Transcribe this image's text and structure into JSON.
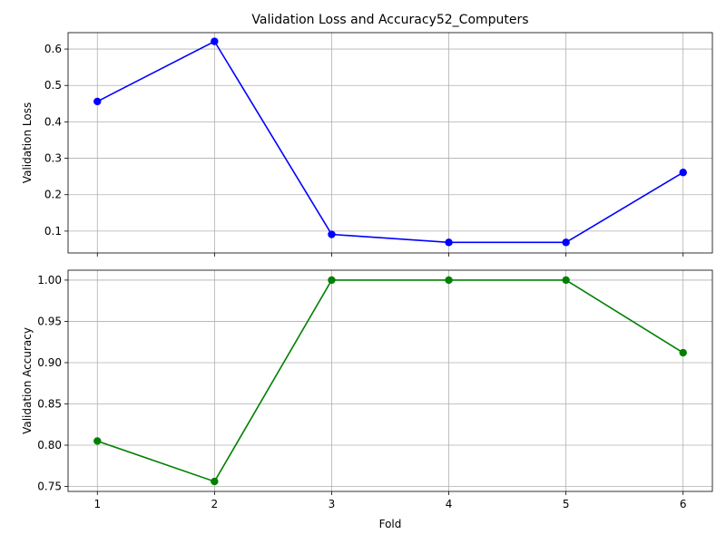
{
  "chart_data": {
    "title": "Validation Loss and Accuracy52_Computers",
    "type": "line",
    "x": [
      1,
      2,
      3,
      4,
      5,
      6
    ],
    "xlabel": "Fold",
    "xticks": [
      "1",
      "2",
      "3",
      "4",
      "5",
      "6"
    ],
    "grid": true,
    "subplots": [
      {
        "ylabel": "Validation Loss",
        "ylim": [
          0.04,
          0.645
        ],
        "yticks": [
          0.1,
          0.2,
          0.3,
          0.4,
          0.5,
          0.6
        ],
        "ytick_labels": [
          "0.1",
          "0.2",
          "0.3",
          "0.4",
          "0.5",
          "0.6"
        ],
        "color": "#0000ff",
        "values": [
          0.456,
          0.621,
          0.091,
          0.069,
          0.069,
          0.261
        ]
      },
      {
        "ylabel": "Validation Accuracy",
        "ylim": [
          0.744,
          1.012
        ],
        "yticks": [
          0.75,
          0.8,
          0.85,
          0.9,
          0.95,
          1.0
        ],
        "ytick_labels": [
          "0.75",
          "0.80",
          "0.85",
          "0.90",
          "0.95",
          "1.00"
        ],
        "color": "#008000",
        "values": [
          0.805,
          0.756,
          1.0,
          1.0,
          1.0,
          0.912
        ]
      }
    ]
  }
}
